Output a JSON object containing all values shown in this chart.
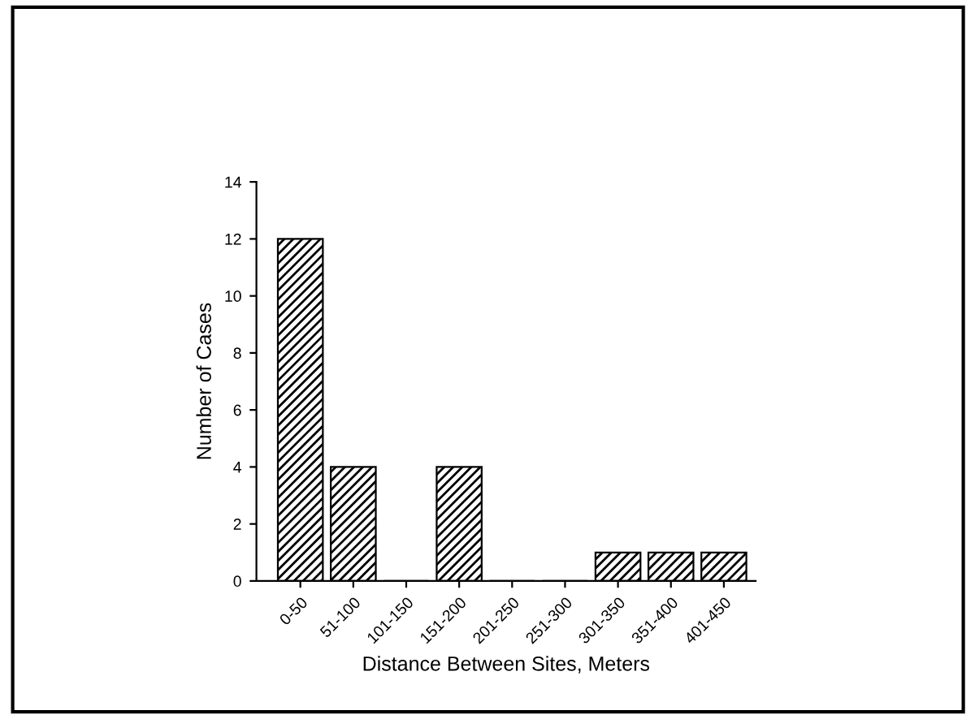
{
  "chart_data": {
    "type": "bar",
    "xlabel": "Distance Between Sites, Meters",
    "ylabel": "Number of Cases",
    "categories": [
      "0-50",
      "51-100",
      "101-150",
      "151-200",
      "201-250",
      "251-300",
      "301-350",
      "351-400",
      "401-450"
    ],
    "values": [
      12,
      4,
      0,
      4,
      0,
      0,
      1,
      1,
      1
    ],
    "color": "#000000",
    "ylim": [
      0,
      14
    ],
    "yticks": [
      0,
      2,
      4,
      6,
      8,
      10,
      12,
      14
    ],
    "grid": false,
    "legend": false
  }
}
